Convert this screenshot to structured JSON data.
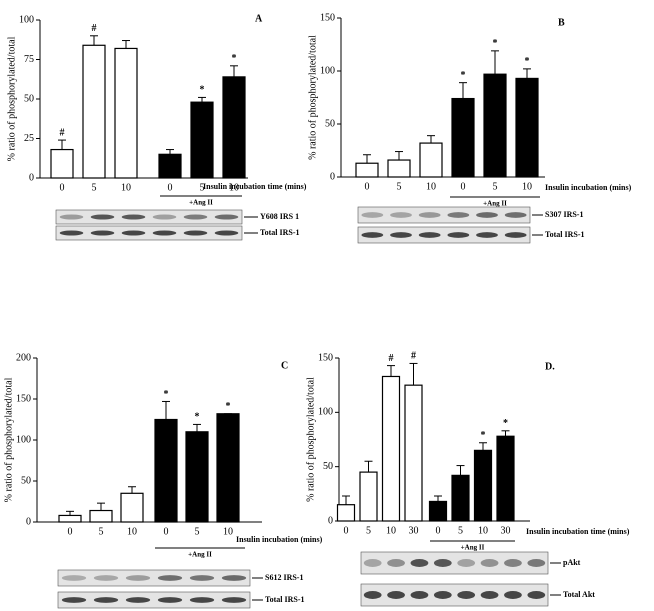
{
  "chart_data": [
    {
      "type": "bar",
      "panel_label": "A",
      "ylabel": "% ratio of phosphorylated/total",
      "xlabel": "Insulin incubation time (mins)",
      "group_label": "+Ang II",
      "categories": [
        "0",
        "5",
        "10",
        "0",
        "5",
        "10"
      ],
      "values": [
        18,
        84,
        82,
        15,
        48,
        64
      ],
      "errors": [
        6,
        6,
        5,
        3,
        3,
        7
      ],
      "markers": [
        "#",
        "#",
        null,
        null,
        "*",
        "*"
      ],
      "colors": [
        "#ffffff",
        "#ffffff",
        "#ffffff",
        "#000000",
        "#000000",
        "#000000"
      ],
      "ylim": [
        0,
        100
      ],
      "yticks": [
        0,
        25,
        50,
        75,
        100
      ],
      "blot_labels": [
        "Y608 IRS 1",
        "Total IRS-1"
      ]
    },
    {
      "type": "bar",
      "panel_label": "B",
      "ylabel": "% ratio of phosphorylated/total",
      "xlabel": "Insulin incubation (mins)",
      "group_label": "+Ang II",
      "categories": [
        "0",
        "5",
        "10",
        "0",
        "5",
        "10"
      ],
      "values": [
        13,
        16,
        32,
        74,
        97,
        93
      ],
      "errors": [
        8,
        8,
        7,
        15,
        22,
        9
      ],
      "markers": [
        null,
        null,
        null,
        "*",
        "*",
        "*"
      ],
      "colors": [
        "#ffffff",
        "#ffffff",
        "#ffffff",
        "#000000",
        "#000000",
        "#000000"
      ],
      "ylim": [
        0,
        150
      ],
      "yticks": [
        0,
        50,
        100,
        150
      ],
      "blot_labels": [
        "S307 IRS-1",
        "Total IRS-1"
      ]
    },
    {
      "type": "bar",
      "panel_label": "C",
      "ylabel": "% ratio of phosphorylated/total",
      "xlabel": "Insulin incubation (mins)",
      "group_label": "+Ang II",
      "categories": [
        "0",
        "5",
        "10",
        "0",
        "5",
        "10"
      ],
      "values": [
        8,
        14,
        35,
        125,
        110,
        132
      ],
      "errors": [
        5,
        9,
        8,
        22,
        9,
        0
      ],
      "markers": [
        null,
        null,
        null,
        "*",
        "*",
        "*"
      ],
      "colors": [
        "#ffffff",
        "#ffffff",
        "#ffffff",
        "#000000",
        "#000000",
        "#000000"
      ],
      "ylim": [
        0,
        200
      ],
      "yticks": [
        0,
        50,
        100,
        150,
        200
      ],
      "blot_labels": [
        "S612 IRS-1",
        "Total IRS-1"
      ]
    },
    {
      "type": "bar",
      "panel_label": "D.",
      "ylabel": "% ratio of phosphorylated/total",
      "xlabel": "Insulin incubation time (mins)",
      "group_label": "+Ang II",
      "categories": [
        "0",
        "5",
        "10",
        "30",
        "0",
        "5",
        "10",
        "30"
      ],
      "values": [
        15,
        45,
        133,
        125,
        18,
        42,
        65,
        78
      ],
      "errors": [
        8,
        10,
        10,
        20,
        5,
        9,
        7,
        5
      ],
      "markers": [
        null,
        null,
        "#",
        "#",
        null,
        null,
        "*",
        "*"
      ],
      "colors": [
        "#ffffff",
        "#ffffff",
        "#ffffff",
        "#ffffff",
        "#000000",
        "#000000",
        "#000000",
        "#000000"
      ],
      "ylim": [
        0,
        150
      ],
      "yticks": [
        0,
        50,
        100,
        150
      ],
      "blot_labels": [
        "pAkt",
        "Total Akt"
      ]
    }
  ]
}
